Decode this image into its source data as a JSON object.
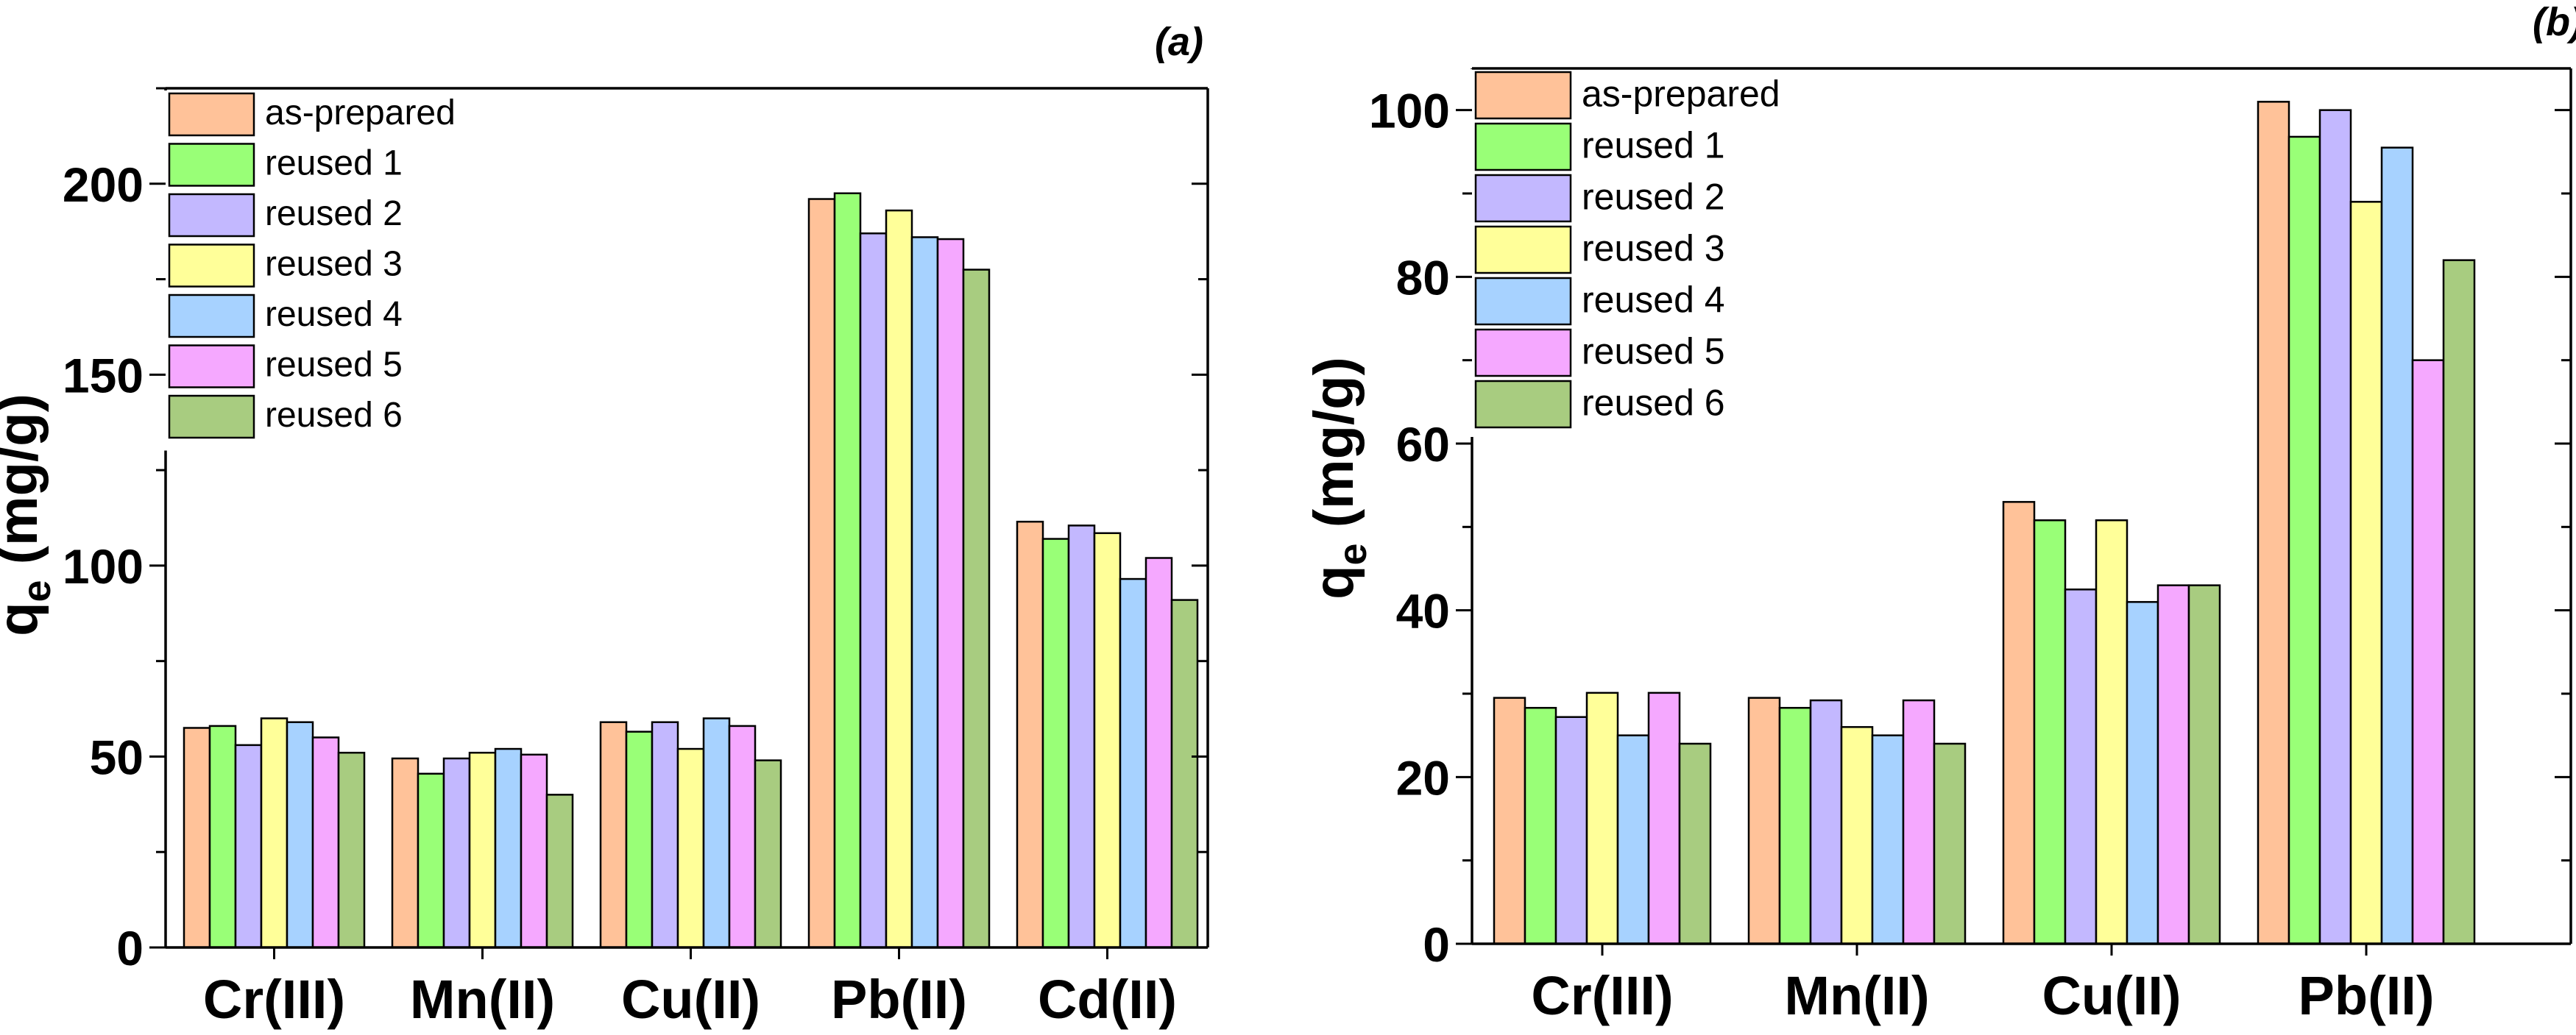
{
  "chart_data": [
    {
      "type": "bar",
      "panel": "(a)",
      "ylabel": "q",
      "ylabel_sub": "e",
      "ylabel_unit": " (mg/g)",
      "ylim": [
        0,
        225
      ],
      "yticks": [
        0,
        50,
        100,
        150,
        200
      ],
      "minor_step": 25,
      "categories": [
        "Cr(III)",
        "Mn(II)",
        "Cu(II)",
        "Pb(II)",
        "Cd(II)"
      ],
      "series": [
        {
          "name": "as-prepared",
          "color": "#FFC299",
          "values": [
            57.5,
            49.5,
            59,
            196,
            111.5
          ]
        },
        {
          "name": "reused 1",
          "color": "#99FF77",
          "values": [
            58,
            45.5,
            56.5,
            197.5,
            107
          ]
        },
        {
          "name": "reused 2",
          "color": "#C3B8FF",
          "values": [
            53,
            49.5,
            59,
            187,
            110.5
          ]
        },
        {
          "name": "reused 3",
          "color": "#FFFF99",
          "values": [
            60,
            51,
            52,
            193,
            108.5
          ]
        },
        {
          "name": "reused 4",
          "color": "#A7D2FF",
          "values": [
            59,
            52,
            60,
            186,
            96.5
          ]
        },
        {
          "name": "reused 5",
          "color": "#F5A8FF",
          "values": [
            55,
            50.5,
            58,
            185.5,
            102
          ]
        },
        {
          "name": "reused 6",
          "color": "#A8CC80",
          "values": [
            51,
            40,
            49,
            177.5,
            91
          ]
        }
      ],
      "legend_position": "top-left"
    },
    {
      "type": "bar",
      "panel": "(b)",
      "ylabel": "q",
      "ylabel_sub": "e",
      "ylabel_unit": " (mg/g)",
      "ylim": [
        0,
        105
      ],
      "yticks": [
        0,
        20,
        40,
        60,
        80,
        100
      ],
      "minor_step": 10,
      "categories": [
        "Cr(III)",
        "Mn(II)",
        "Cu(II)",
        "Pb(II)"
      ],
      "series": [
        {
          "name": "as-prepared",
          "color": "#FFC299",
          "values": [
            29.5,
            29.5,
            53,
            101
          ]
        },
        {
          "name": "reused 1",
          "color": "#99FF77",
          "values": [
            28.3,
            28.3,
            50.8,
            96.8
          ]
        },
        {
          "name": "reused 2",
          "color": "#C3B8FF",
          "values": [
            27.2,
            29.2,
            42.5,
            100
          ]
        },
        {
          "name": "reused 3",
          "color": "#FFFF99",
          "values": [
            30.1,
            26,
            50.8,
            89
          ]
        },
        {
          "name": "reused 4",
          "color": "#A7D2FF",
          "values": [
            25,
            25,
            41,
            95.5
          ]
        },
        {
          "name": "reused 5",
          "color": "#F5A8FF",
          "values": [
            30.1,
            29.2,
            43,
            70
          ]
        },
        {
          "name": "reused 6",
          "color": "#A8CC80",
          "values": [
            24,
            24,
            43,
            82
          ]
        }
      ],
      "legend_position": "top-left"
    }
  ]
}
